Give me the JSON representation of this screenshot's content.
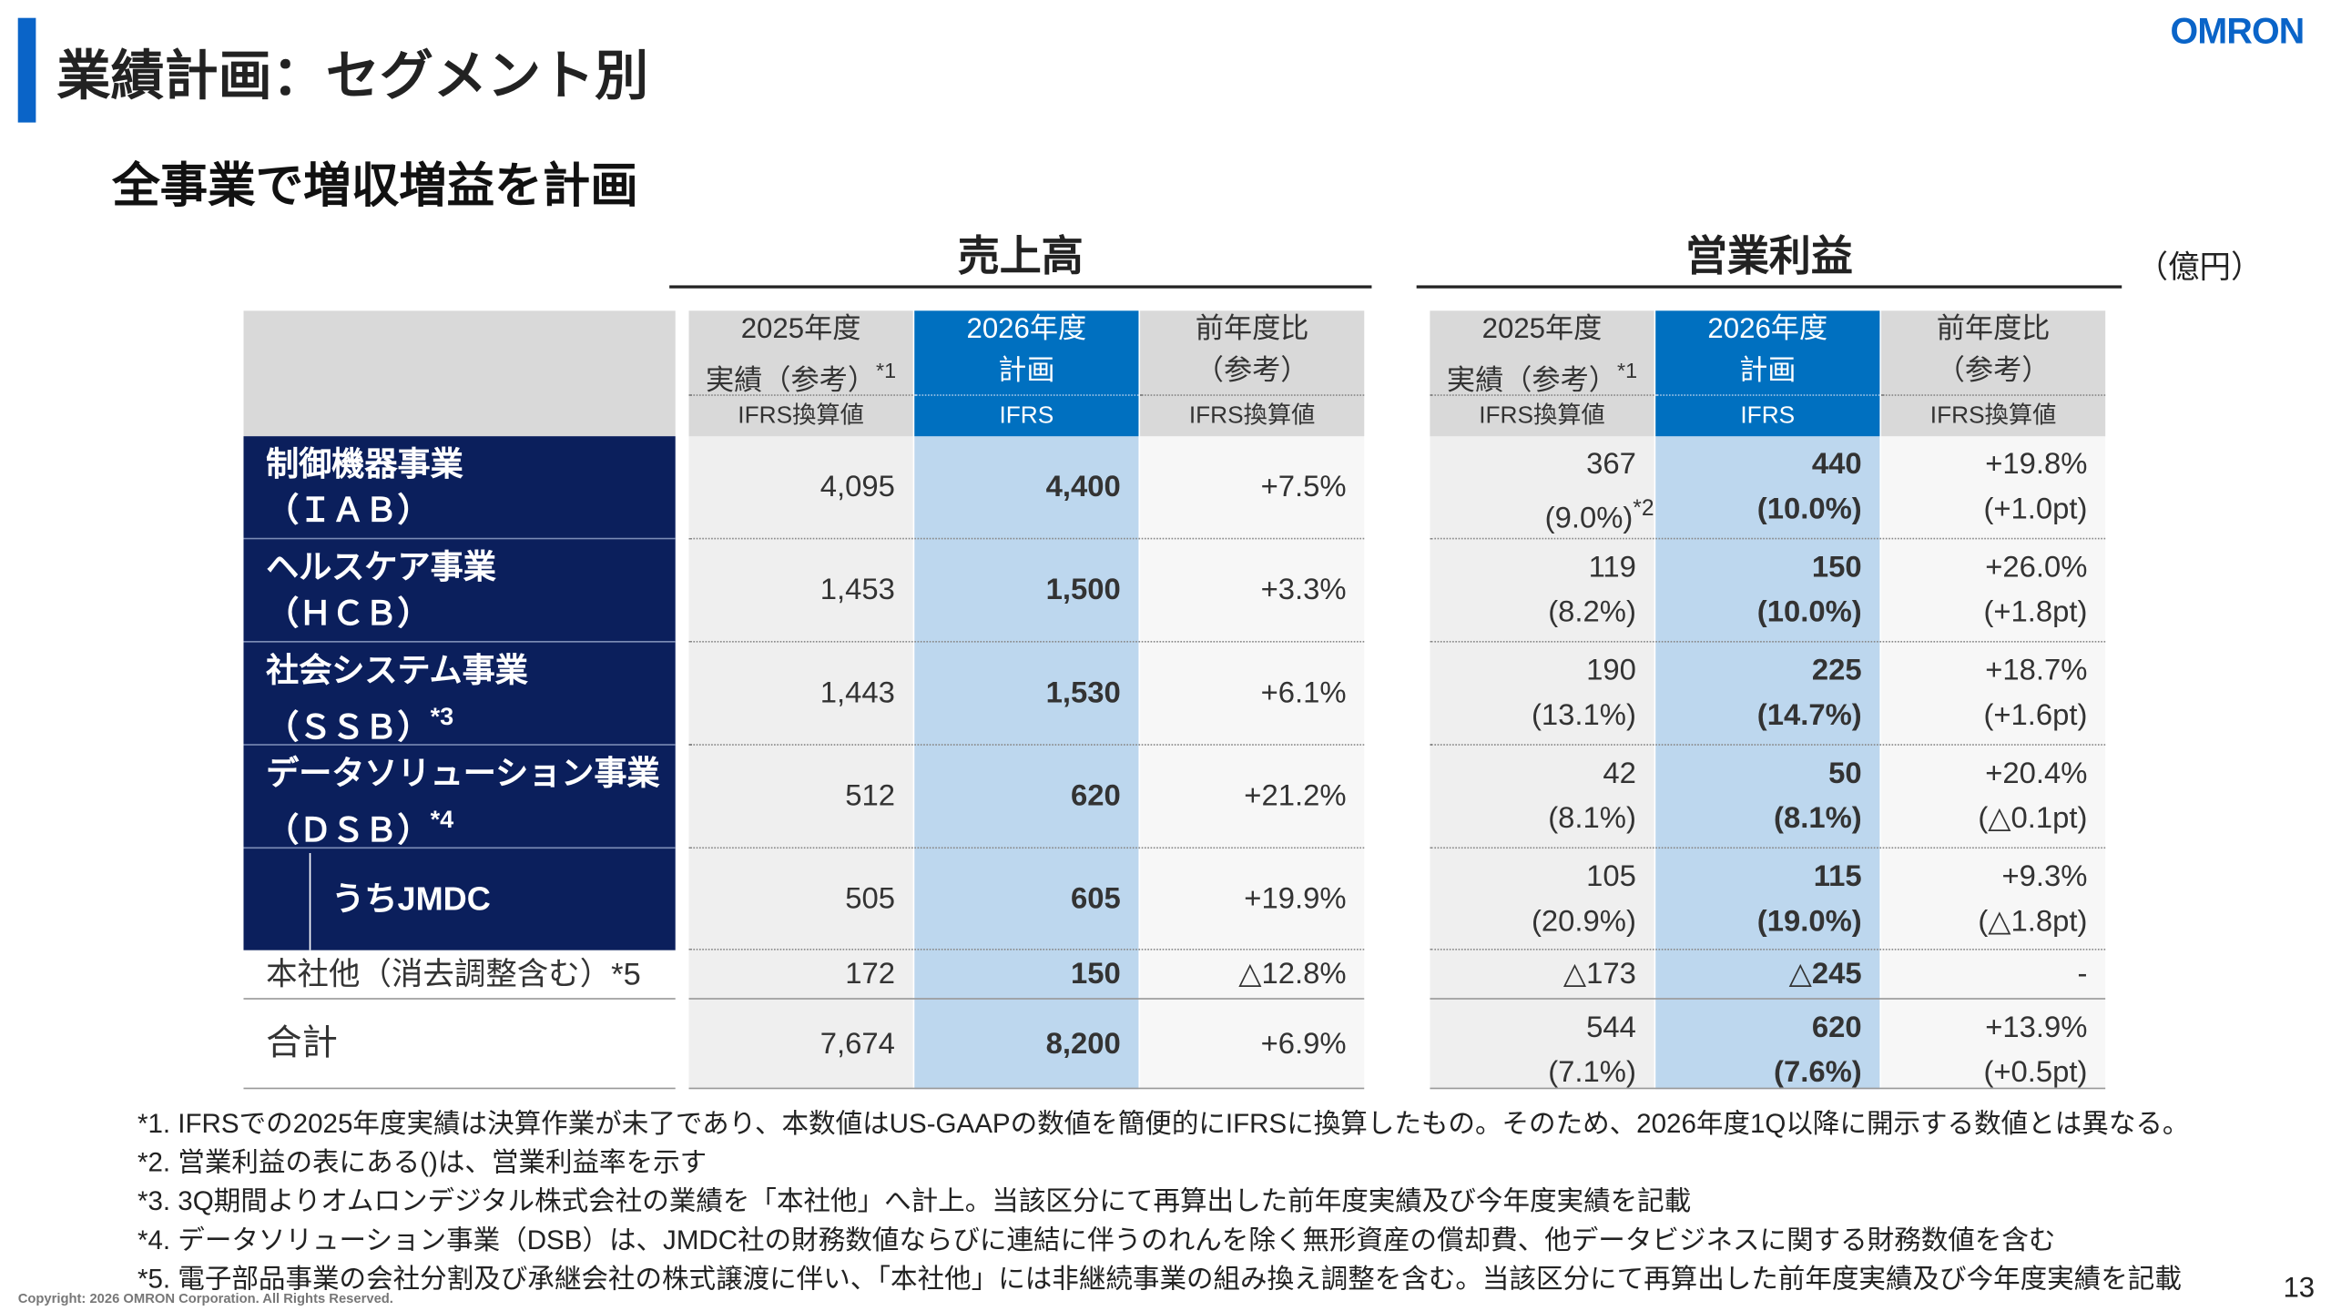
{
  "header": {
    "title": "業績計画：セグメント別",
    "logo": "OMRON"
  },
  "subtitle": "全事業で増収増益を計画",
  "unit": "（億円）",
  "sales": {
    "title": "売上高",
    "columns": [
      {
        "year": "2025年度",
        "kind": "実績（参考）",
        "note": "*1",
        "basis": "IFRS換算値"
      },
      {
        "year": "2026年度",
        "kind": "計画",
        "basis": "IFRS"
      },
      {
        "year": "前年度比",
        "kind": "（参考）",
        "basis": "IFRS換算値"
      }
    ]
  },
  "profit": {
    "title": "営業利益",
    "columns": [
      {
        "year": "2025年度",
        "kind": "実績（参考）",
        "note": "*1",
        "basis": "IFRS換算値"
      },
      {
        "year": "2026年度",
        "kind": "計画",
        "basis": "IFRS"
      },
      {
        "year": "前年度比",
        "kind": "（参考）",
        "basis": "IFRS換算値"
      }
    ]
  },
  "rows": [
    {
      "name": "制御機器事業",
      "code": "（ＩＡＢ）",
      "sales": [
        "4,095",
        "4,400",
        "+7.5%"
      ],
      "profit": [
        {
          "value": "367",
          "margin": "(9.0%)",
          "margin_note": "*2"
        },
        {
          "value": "440",
          "margin": "(10.0%)"
        },
        {
          "value": "+19.8%",
          "margin": "(+1.0pt)"
        }
      ]
    },
    {
      "name": "ヘルスケア事業",
      "code": "（ＨＣＢ）",
      "sales": [
        "1,453",
        "1,500",
        "+3.3%"
      ],
      "profit": [
        {
          "value": "119",
          "margin": "(8.2%)"
        },
        {
          "value": "150",
          "margin": "(10.0%)"
        },
        {
          "value": "+26.0%",
          "margin": "(+1.8pt)"
        }
      ]
    },
    {
      "name": "社会システム事業",
      "code": "（ＳＳＢ）",
      "code_note": "*3",
      "sales": [
        "1,443",
        "1,530",
        "+6.1%"
      ],
      "profit": [
        {
          "value": "190",
          "margin": "(13.1%)"
        },
        {
          "value": "225",
          "margin": "(14.7%)"
        },
        {
          "value": "+18.7%",
          "margin": "(+1.6pt)"
        }
      ]
    },
    {
      "name": "データソリューション事業",
      "code": "（ＤＳＢ）",
      "code_note": "*4",
      "sales": [
        "512",
        "620",
        "+21.2%"
      ],
      "profit": [
        {
          "value": "42",
          "margin": "(8.1%)"
        },
        {
          "value": "50",
          "margin": "(8.1%)"
        },
        {
          "value": "+20.4%",
          "margin": "(△0.1pt)"
        }
      ]
    },
    {
      "name": "うちJMDC",
      "sub": true,
      "sales": [
        "505",
        "605",
        "+19.9%"
      ],
      "profit": [
        {
          "value": "105",
          "margin": "(20.9%)"
        },
        {
          "value": "115",
          "margin": "(19.0%)"
        },
        {
          "value": "+9.3%",
          "margin": "(△1.8pt)"
        }
      ]
    },
    {
      "name": "本社他（消去調整含む）*5",
      "plain": true,
      "sales": [
        "172",
        "150",
        "△12.8%"
      ],
      "profit": [
        {
          "value": "△173"
        },
        {
          "value": "△245"
        },
        {
          "value": "-"
        }
      ]
    },
    {
      "name": "合計",
      "plain": true,
      "sales": [
        "7,674",
        "8,200",
        "+6.9%"
      ],
      "profit": [
        {
          "value": "544",
          "margin": "(7.1%)"
        },
        {
          "value": "620",
          "margin": "(7.6%)"
        },
        {
          "value": "+13.9%",
          "margin": "(+0.5pt)"
        }
      ]
    }
  ],
  "footnotes": [
    "*1. IFRSでの2025年度実績は決算作業が未了であり、本数値はUS-GAAPの数値を簡便的にIFRSに換算したもの。そのため、2026年度1Q以降に開示する数値とは異なる。",
    "*2. 営業利益の表にある()は、営業利益率を示す",
    "*3. 3Q期間よりオムロンデジタル株式会社の業績を「本社他」へ計上。当該区分にて再算出した前年度実績及び今年度実績を記載",
    "*4. データソリューション事業（DSB）は、JMDC社の財務数値ならびに連結に伴うのれんを除く無形資産の償却費、他データビジネスに関する財務数値を含む",
    "*5. 電子部品事業の会社分割及び承継会社の株式譲渡に伴い、「本社他」には非継続事業の組み換え調整を含む。当該区分にて再算出した前年度実績及び今年度実績を記載"
  ],
  "copyright": "Copyright: 2026 OMRON Corporation. All Rights Reserved.",
  "page_number": "13"
}
